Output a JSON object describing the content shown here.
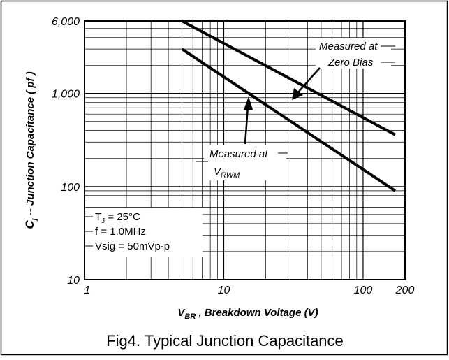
{
  "chart_data": {
    "type": "line",
    "xlabel": [
      "V",
      "BR",
      " , Breakdown Voltage (V)"
    ],
    "ylabel": [
      "C",
      "j",
      " -- Junction Capacitance ( pf )"
    ],
    "caption": "Fig4. Typical Junction Capacitance",
    "x": [
      5,
      170
    ],
    "series": [
      {
        "color": "#000000",
        "values": [
          6000,
          360
        ]
      },
      {
        "color": "#000000",
        "values": [
          3000,
          90
        ]
      }
    ],
    "xlim": [
      1,
      200
    ],
    "ylim": [
      10,
      6000
    ],
    "xticks": [
      1,
      10,
      100,
      200
    ],
    "yticks": [
      10,
      100,
      {
        "value": 1000,
        "label": "1,000"
      },
      {
        "value": 6000,
        "label": "6,000"
      }
    ],
    "log_x": true,
    "log_y": true,
    "grid": true,
    "minor_grid": true,
    "annotations": [
      {
        "lines": [
          "Measured at",
          "Zero Bias"
        ]
      },
      {
        "lines": [
          "Measured at"
        ],
        "symbol": [
          "V",
          "RWM"
        ]
      }
    ],
    "conditions": [
      [
        "T",
        "J",
        " = 25°C"
      ],
      "f = 1.0MHz",
      "Vsig = 50mVp-p"
    ]
  }
}
